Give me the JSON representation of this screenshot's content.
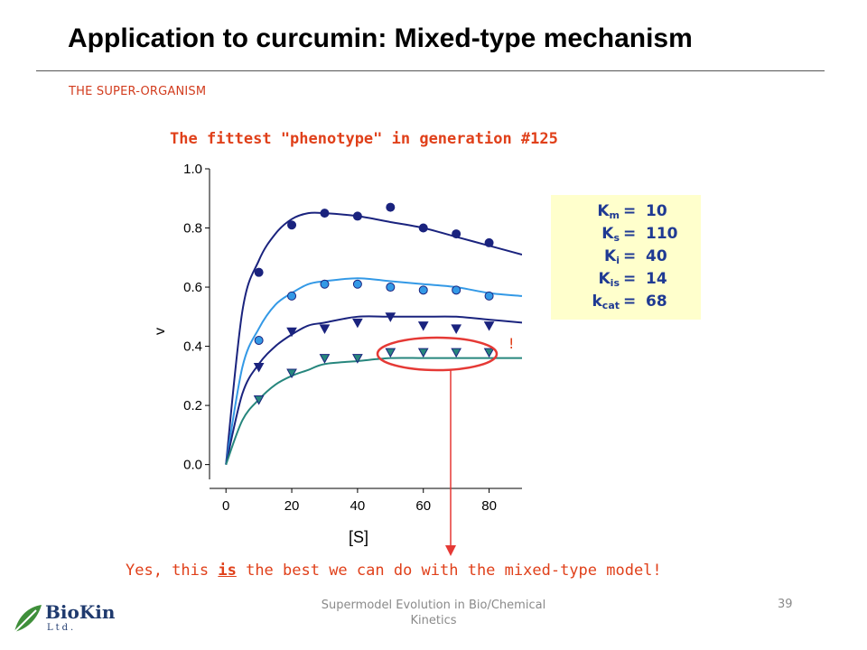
{
  "slide": {
    "title": "Application to curcumin: Mixed-type mechanism",
    "section": "THE SUPER-ORGANISM",
    "subtitle": "The fittest \"phenotype\" in generation #125",
    "conclusion_pre": "Yes, this ",
    "conclusion_emph": "is",
    "conclusion_post": " the best we can do with the mixed-type model!",
    "footer": "Supermodel Evolution in Bio/Chemical Kinetics",
    "page_number": "39",
    "logo": {
      "name": "BioKin",
      "sub": "Ltd."
    }
  },
  "parameters": [
    {
      "symbol": "K",
      "sub": "m",
      "value": "10"
    },
    {
      "symbol": "K",
      "sub": "s",
      "value": "110"
    },
    {
      "symbol": "K",
      "sub": "i",
      "value": "40"
    },
    {
      "symbol": "K",
      "sub": "is",
      "value": "14"
    },
    {
      "symbol": "k",
      "sub": "cat",
      "value": "68"
    }
  ],
  "chart_data": {
    "type": "scatter",
    "xlabel": "[S]",
    "ylabel": "v",
    "xlim": [
      -5,
      90
    ],
    "ylim": [
      -0.05,
      1.0
    ],
    "xticks": [
      "0",
      "20",
      "40",
      "60",
      "80"
    ],
    "yticks": [
      "0.0",
      "0.2",
      "0.4",
      "0.6",
      "0.8",
      "1.0"
    ],
    "grid": false,
    "annotation": "!",
    "colors": {
      "navy": "#1a237e",
      "sky": "#3399e6",
      "teal": "#26867d",
      "highlight": "#e53935",
      "text_orange": "#e0401a",
      "param_text": "#1f3a93"
    },
    "series": [
      {
        "marker": "circle",
        "color": "#1a237e",
        "fill": "#1a237e",
        "x": [
          10,
          20,
          30,
          40,
          50,
          60,
          70,
          80
        ],
        "y": [
          0.65,
          0.81,
          0.85,
          0.84,
          0.87,
          0.8,
          0.78,
          0.75
        ],
        "fit_x": [
          0,
          5,
          10,
          15,
          20,
          25,
          30,
          40,
          50,
          60,
          70,
          80,
          90
        ],
        "fit_y": [
          0.0,
          0.52,
          0.69,
          0.78,
          0.83,
          0.85,
          0.85,
          0.84,
          0.82,
          0.8,
          0.77,
          0.74,
          0.71
        ]
      },
      {
        "marker": "circle",
        "color": "#1a237e",
        "fill": "#3399e6",
        "x": [
          10,
          20,
          30,
          40,
          50,
          60,
          70,
          80
        ],
        "y": [
          0.42,
          0.57,
          0.61,
          0.61,
          0.6,
          0.59,
          0.59,
          0.57
        ],
        "fit_x": [
          0,
          5,
          10,
          15,
          20,
          25,
          30,
          40,
          50,
          60,
          70,
          80,
          90
        ],
        "fit_y": [
          0.0,
          0.33,
          0.46,
          0.54,
          0.58,
          0.61,
          0.62,
          0.63,
          0.62,
          0.61,
          0.6,
          0.58,
          0.57
        ]
      },
      {
        "marker": "triangle-down",
        "color": "#1a237e",
        "fill": "#1a237e",
        "x": [
          10,
          20,
          30,
          40,
          50,
          60,
          70,
          80
        ],
        "y": [
          0.33,
          0.45,
          0.46,
          0.48,
          0.5,
          0.47,
          0.46,
          0.47
        ],
        "fit_x": [
          0,
          5,
          10,
          15,
          20,
          25,
          30,
          40,
          50,
          60,
          70,
          80,
          90
        ],
        "fit_y": [
          0.0,
          0.24,
          0.34,
          0.4,
          0.44,
          0.47,
          0.48,
          0.5,
          0.5,
          0.5,
          0.5,
          0.49,
          0.48
        ]
      },
      {
        "marker": "triangle-down",
        "color": "#1a237e",
        "fill": "#26867d",
        "x": [
          10,
          20,
          30,
          40,
          50,
          60,
          70,
          80
        ],
        "y": [
          0.22,
          0.31,
          0.36,
          0.36,
          0.38,
          0.38,
          0.38,
          0.38
        ],
        "fit_x": [
          0,
          5,
          10,
          15,
          20,
          25,
          30,
          40,
          50,
          60,
          70,
          80,
          90
        ],
        "fit_y": [
          0.0,
          0.15,
          0.22,
          0.27,
          0.3,
          0.32,
          0.34,
          0.35,
          0.36,
          0.36,
          0.36,
          0.36,
          0.36
        ]
      }
    ]
  }
}
